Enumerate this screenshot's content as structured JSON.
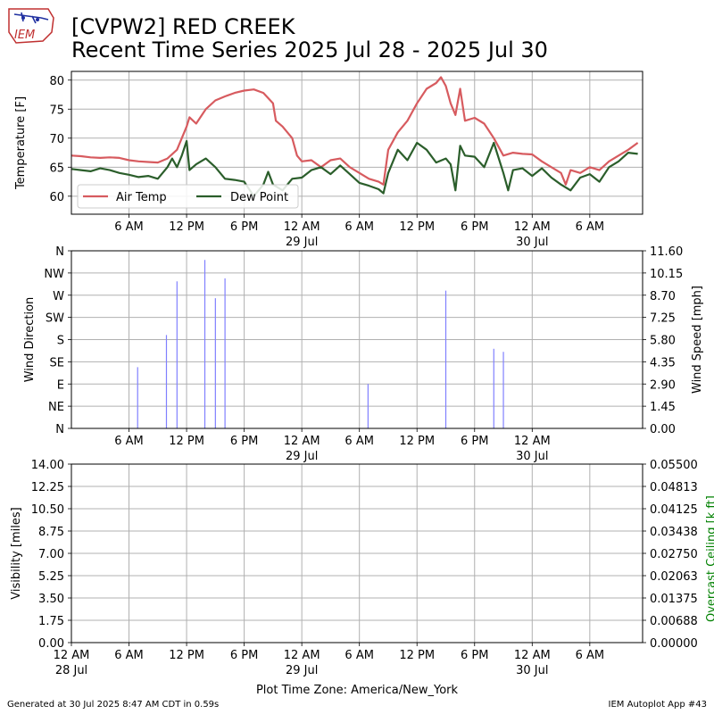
{
  "header": {
    "logo_text": "IEM",
    "title_line1": "[CVPW2] RED CREEK",
    "title_line2": "Recent Time Series 2025 Jul 28 - 2025 Jul 30"
  },
  "footer": {
    "generated": "Generated at 30 Jul 2025 8:47 AM CDT in 0.59s",
    "app": "IEM Autoplot App #43"
  },
  "colors": {
    "air_temp": "#d75b5f",
    "dew_point": "#2b5e2b",
    "wind": "#8080ff",
    "ceiling_label": "#008000",
    "grid": "#b0b0b0"
  },
  "chart_data": [
    {
      "type": "line",
      "ylabel": "Temperature [F]",
      "ylim": [
        56.9,
        81.5
      ],
      "yticks": [
        60,
        65,
        70,
        75,
        80
      ],
      "grid": true,
      "legend": "lower-left",
      "x_tick_labels": [
        {
          "hour": 30,
          "label": "6 AM"
        },
        {
          "hour": 36,
          "label": "12 PM"
        },
        {
          "hour": 42,
          "label": "6 PM"
        },
        {
          "hour": 48,
          "label": "12 AM",
          "sub": "29 Jul"
        },
        {
          "hour": 54,
          "label": "6 AM"
        },
        {
          "hour": 60,
          "label": "12 PM"
        },
        {
          "hour": 66,
          "label": "6 PM"
        },
        {
          "hour": 72,
          "label": "12 AM",
          "sub": "30 Jul"
        },
        {
          "hour": 78,
          "label": "6 AM"
        }
      ],
      "series": [
        {
          "name": "Air Temp",
          "points": [
            [
              24,
              67
            ],
            [
              25,
              66.9
            ],
            [
              26,
              66.7
            ],
            [
              27,
              66.6
            ],
            [
              28,
              66.7
            ],
            [
              29,
              66.6
            ],
            [
              30,
              66.2
            ],
            [
              31,
              66.0
            ],
            [
              32,
              65.9
            ],
            [
              33,
              65.8
            ],
            [
              34,
              66.5
            ],
            [
              35,
              68
            ],
            [
              35.5,
              70
            ],
            [
              36,
              72
            ],
            [
              36.3,
              73.6
            ],
            [
              37,
              72.5
            ],
            [
              38,
              75
            ],
            [
              39,
              76.5
            ],
            [
              40,
              77.2
            ],
            [
              41,
              77.8
            ],
            [
              42,
              78.2
            ],
            [
              43,
              78.4
            ],
            [
              44,
              77.8
            ],
            [
              45,
              76
            ],
            [
              45.3,
              73
            ],
            [
              46,
              72
            ],
            [
              47,
              70
            ],
            [
              47.5,
              67
            ],
            [
              48,
              66
            ],
            [
              49,
              66.2
            ],
            [
              50,
              65
            ],
            [
              51,
              66.2
            ],
            [
              52,
              66.5
            ],
            [
              53,
              65
            ],
            [
              54,
              64
            ],
            [
              55,
              63
            ],
            [
              56,
              62.5
            ],
            [
              56.5,
              62
            ],
            [
              57,
              68
            ],
            [
              58,
              71
            ],
            [
              59,
              73
            ],
            [
              60,
              76
            ],
            [
              61,
              78.5
            ],
            [
              62,
              79.5
            ],
            [
              62.5,
              80.5
            ],
            [
              63,
              79
            ],
            [
              63.5,
              76
            ],
            [
              64,
              74
            ],
            [
              64.5,
              78.5
            ],
            [
              65,
              73
            ],
            [
              66,
              73.5
            ],
            [
              67,
              72.5
            ],
            [
              68,
              70
            ],
            [
              69,
              67
            ],
            [
              70,
              67.5
            ],
            [
              71,
              67.3
            ],
            [
              72,
              67.2
            ],
            [
              73,
              66
            ],
            [
              74,
              65
            ],
            [
              75,
              64
            ],
            [
              75.5,
              62
            ],
            [
              76,
              64.5
            ],
            [
              77,
              64
            ],
            [
              78,
              65
            ],
            [
              79,
              64.5
            ],
            [
              80,
              66
            ],
            [
              81,
              67
            ],
            [
              82,
              68
            ],
            [
              83,
              69.2
            ]
          ]
        },
        {
          "name": "Dew Point",
          "points": [
            [
              24,
              64.7
            ],
            [
              25,
              64.5
            ],
            [
              26,
              64.3
            ],
            [
              27,
              64.8
            ],
            [
              28,
              64.5
            ],
            [
              29,
              64.0
            ],
            [
              30,
              63.7
            ],
            [
              31,
              63.3
            ],
            [
              32,
              63.5
            ],
            [
              33,
              63.0
            ],
            [
              34,
              65.0
            ],
            [
              34.5,
              66.5
            ],
            [
              35,
              65
            ],
            [
              35.5,
              67
            ],
            [
              36,
              69.5
            ],
            [
              36.3,
              64.5
            ],
            [
              37,
              65.5
            ],
            [
              38,
              66.5
            ],
            [
              39,
              65.0
            ],
            [
              39.5,
              64
            ],
            [
              40,
              63
            ],
            [
              41,
              62.8
            ],
            [
              42,
              62.5
            ],
            [
              43,
              60
            ],
            [
              44,
              62
            ],
            [
              44.5,
              64.2
            ],
            [
              45,
              62
            ],
            [
              46,
              61
            ],
            [
              47,
              63
            ],
            [
              48,
              63.2
            ],
            [
              49,
              64.5
            ],
            [
              50,
              65
            ],
            [
              51,
              63.8
            ],
            [
              52,
              65.3
            ],
            [
              53,
              63.8
            ],
            [
              54,
              62.3
            ],
            [
              55,
              61.8
            ],
            [
              56,
              61.2
            ],
            [
              56.5,
              60.5
            ],
            [
              57,
              64
            ],
            [
              58,
              68
            ],
            [
              59,
              66.2
            ],
            [
              60,
              69.2
            ],
            [
              61,
              68
            ],
            [
              62,
              65.8
            ],
            [
              63,
              66.5
            ],
            [
              63.5,
              65.5
            ],
            [
              64,
              61
            ],
            [
              64.5,
              68.7
            ],
            [
              65,
              67
            ],
            [
              66,
              66.8
            ],
            [
              67,
              65
            ],
            [
              68,
              69.2
            ],
            [
              69,
              64
            ],
            [
              69.5,
              61
            ],
            [
              70,
              64.5
            ],
            [
              71,
              64.8
            ],
            [
              72,
              63.5
            ],
            [
              73,
              64.8
            ],
            [
              74,
              63.2
            ],
            [
              75,
              62
            ],
            [
              76,
              61
            ],
            [
              77,
              63.2
            ],
            [
              78,
              63.8
            ],
            [
              79,
              62.5
            ],
            [
              80,
              65
            ],
            [
              81,
              66
            ],
            [
              82,
              67.5
            ],
            [
              83,
              67.3
            ]
          ]
        }
      ]
    },
    {
      "type": "bar",
      "ylabel": "Wind Direction",
      "y2label": "Wind Speed [mph]",
      "y_dir_ticks": [
        "N",
        "NE",
        "E",
        "SE",
        "S",
        "SW",
        "W",
        "NW",
        "N"
      ],
      "y2_ticks": [
        "0.00",
        "1.45",
        "2.90",
        "4.35",
        "5.80",
        "7.25",
        "8.70",
        "10.15",
        "11.60"
      ],
      "y2lim": [
        0,
        11.6
      ],
      "grid": true,
      "x_tick_labels": [
        {
          "hour": 30,
          "label": "6 AM"
        },
        {
          "hour": 36,
          "label": "12 PM"
        },
        {
          "hour": 42,
          "label": "6 PM"
        },
        {
          "hour": 48,
          "label": "12 AM",
          "sub": "29 Jul"
        },
        {
          "hour": 54,
          "label": "6 AM"
        },
        {
          "hour": 60,
          "label": "12 PM"
        },
        {
          "hour": 66,
          "label": "6 PM"
        },
        {
          "hour": 72,
          "label": "12 AM",
          "sub": "30 Jul"
        }
      ],
      "wind_speed_points": [
        [
          30.9,
          4.0
        ],
        [
          33.9,
          6.1
        ],
        [
          35.0,
          9.6
        ],
        [
          37.9,
          11.0
        ],
        [
          39.0,
          8.5
        ],
        [
          40.0,
          9.8
        ],
        [
          54.9,
          2.9
        ],
        [
          63.0,
          9.0
        ],
        [
          68.0,
          5.2
        ],
        [
          69.0,
          5.0
        ]
      ]
    },
    {
      "type": "line",
      "ylabel": "Visibility [miles]",
      "y2label": "Overcast Ceiling [k ft]",
      "yticks": [
        "0.00",
        "1.75",
        "3.50",
        "5.25",
        "7.00",
        "8.75",
        "10.50",
        "12.25",
        "14.00"
      ],
      "y2ticks": [
        "0.00000",
        "0.00688",
        "0.01375",
        "0.02063",
        "0.02750",
        "0.03438",
        "0.04125",
        "0.04813",
        "0.05500"
      ],
      "ylim": [
        0,
        14
      ],
      "grid": true,
      "xlabel": "Plot Time Zone: America/New_York",
      "x_tick_labels": [
        {
          "hour": 24,
          "label": "12 AM",
          "sub": "28 Jul"
        },
        {
          "hour": 30,
          "label": "6 AM"
        },
        {
          "hour": 36,
          "label": "12 PM"
        },
        {
          "hour": 42,
          "label": "6 PM"
        },
        {
          "hour": 48,
          "label": "12 AM",
          "sub": "29 Jul"
        },
        {
          "hour": 54,
          "label": "6 AM"
        },
        {
          "hour": 60,
          "label": "12 PM"
        },
        {
          "hour": 66,
          "label": "6 PM"
        },
        {
          "hour": 72,
          "label": "12 AM",
          "sub": "30 Jul"
        },
        {
          "hour": 78,
          "label": "6 AM"
        }
      ]
    }
  ]
}
